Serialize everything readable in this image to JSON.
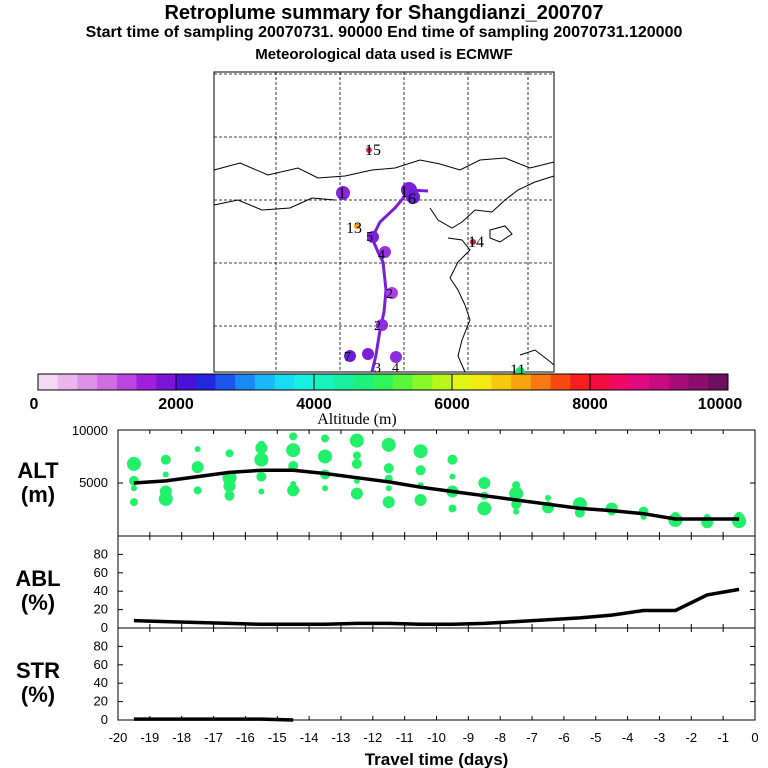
{
  "header": {
    "title": "Retroplume summary for Shangdianzi_200707",
    "sampling_line": "Start time of sampling 20070731. 90000     End time of sampling 20070731.120000",
    "met_line": "Meteorological data used is ECMWF"
  },
  "colorbar": {
    "label": "Altitude (m)",
    "ticks": [
      "0",
      "2000",
      "4000",
      "6000",
      "8000",
      "10000"
    ],
    "colors": [
      "#f4d8f4",
      "#e9b6ee",
      "#dd92e8",
      "#cf6de3",
      "#bb45de",
      "#a11edc",
      "#7b14d8",
      "#4a10d8",
      "#2426e0",
      "#1d56ee",
      "#1a88f6",
      "#19b8f8",
      "#18dcf4",
      "#18f0e0",
      "#17f2c0",
      "#18f0a0",
      "#1ef27d",
      "#30f55a",
      "#58f73c",
      "#89f828",
      "#b8f81c",
      "#dff616",
      "#f6e812",
      "#f7c810",
      "#f8a40f",
      "#f8790f",
      "#f84a12",
      "#f81d1e",
      "#f20c40",
      "#ee0a62",
      "#e20a80",
      "#c80c80",
      "#a80c78",
      "#8a0e6c",
      "#6c0f5e"
    ]
  },
  "map": {
    "points": [
      {
        "label": "15",
        "color": "#e22680"
      },
      {
        "label": "14",
        "color": "#e01a36"
      },
      {
        "label": "1",
        "color": "#8a24e0"
      },
      {
        "label": "13",
        "color": "#f39c12"
      },
      {
        "label": "1",
        "color": "#7a1fd8"
      },
      {
        "label": "6",
        "color": "#6a1fd8"
      },
      {
        "label": "5",
        "color": "#7a1fd8"
      },
      {
        "label": "4",
        "color": "#9a2fe0"
      },
      {
        "label": "2",
        "color": "#aa3ee0"
      },
      {
        "label": "2",
        "color": "#8a2ee0"
      },
      {
        "label": "7",
        "color": "#6a1fd8"
      },
      {
        "label": "3",
        "color": "#7a1fd8"
      },
      {
        "label": "4",
        "color": "#8a2ee0"
      },
      {
        "label": "11",
        "color": "#22e07a"
      }
    ]
  },
  "chart_data": [
    {
      "type": "scatter",
      "name": "ALT",
      "ylabel": "ALT (m)",
      "ylabel_line1": "ALT",
      "ylabel_line2": "(m)",
      "xlim": [
        -20,
        0
      ],
      "ylim": [
        0,
        10000
      ],
      "yticks": [
        "5000",
        "10000"
      ],
      "median_line": {
        "x": [
          -19.5,
          -18.5,
          -17.5,
          -16.5,
          -15.5,
          -14.5,
          -13.5,
          -12.5,
          -11.5,
          -10.5,
          -9.5,
          -8.5,
          -7.5,
          -6.5,
          -5.5,
          -4.5,
          -3.5,
          -2.5,
          -1.5,
          -0.5
        ],
        "y": [
          5000,
          5200,
          5600,
          6000,
          6200,
          6200,
          5900,
          5500,
          5100,
          4600,
          4200,
          3800,
          3400,
          3000,
          2600,
          2400,
          2100,
          1600,
          1600,
          1600
        ]
      },
      "scatter_color": "#22f06a",
      "scatter_points": [
        [
          -19.5,
          4500
        ],
        [
          -19.5,
          5200
        ],
        [
          -19.5,
          6800
        ],
        [
          -19.5,
          3200
        ],
        [
          -18.5,
          4200
        ],
        [
          -18.5,
          5800
        ],
        [
          -18.5,
          7200
        ],
        [
          -18.5,
          3500
        ],
        [
          -17.5,
          4300
        ],
        [
          -17.5,
          6500
        ],
        [
          -17.5,
          8200
        ],
        [
          -16.5,
          3800
        ],
        [
          -16.5,
          5500
        ],
        [
          -16.5,
          7800
        ],
        [
          -16.5,
          4700
        ],
        [
          -15.5,
          4200
        ],
        [
          -15.5,
          5600
        ],
        [
          -15.5,
          7200
        ],
        [
          -15.5,
          8600
        ],
        [
          -15.5,
          8300
        ],
        [
          -14.5,
          4900
        ],
        [
          -14.5,
          6600
        ],
        [
          -14.5,
          8100
        ],
        [
          -14.5,
          9400
        ],
        [
          -14.5,
          4300
        ],
        [
          -13.5,
          4500
        ],
        [
          -13.5,
          5800
        ],
        [
          -13.5,
          7500
        ],
        [
          -13.5,
          9200
        ],
        [
          -12.5,
          4000
        ],
        [
          -12.5,
          5200
        ],
        [
          -12.5,
          6800
        ],
        [
          -12.5,
          9000
        ],
        [
          -12.5,
          7600
        ],
        [
          -11.5,
          3200
        ],
        [
          -11.5,
          4500
        ],
        [
          -11.5,
          6400
        ],
        [
          -11.5,
          8600
        ],
        [
          -11.5,
          5400
        ],
        [
          -10.5,
          3400
        ],
        [
          -10.5,
          4800
        ],
        [
          -10.5,
          6200
        ],
        [
          -10.5,
          8000
        ],
        [
          -9.5,
          2600
        ],
        [
          -9.5,
          4200
        ],
        [
          -9.5,
          5600
        ],
        [
          -9.5,
          7200
        ],
        [
          -8.5,
          2600
        ],
        [
          -8.5,
          3800
        ],
        [
          -8.5,
          5000
        ],
        [
          -7.5,
          2300
        ],
        [
          -7.5,
          3000
        ],
        [
          -7.5,
          4000
        ],
        [
          -7.5,
          4800
        ],
        [
          -6.5,
          2700
        ],
        [
          -6.5,
          3600
        ],
        [
          -5.5,
          2200
        ],
        [
          -5.5,
          3000
        ],
        [
          -4.5,
          2300
        ],
        [
          -4.5,
          2600
        ],
        [
          -3.5,
          1800
        ],
        [
          -3.5,
          2300
        ],
        [
          -2.5,
          1500
        ],
        [
          -2.5,
          1900
        ],
        [
          -1.5,
          1300
        ],
        [
          -1.5,
          1800
        ],
        [
          -1.5,
          1500
        ],
        [
          -0.5,
          1400
        ],
        [
          -0.5,
          1900
        ],
        [
          -0.5,
          1600
        ]
      ]
    },
    {
      "type": "line",
      "name": "ABL",
      "ylabel": "ABL (%)",
      "ylabel_line1": "ABL",
      "ylabel_line2": "(%)",
      "xlim": [
        -20,
        0
      ],
      "ylim": [
        0,
        100
      ],
      "yticks": [
        "0",
        "20",
        "40",
        "60",
        "80"
      ],
      "x": [
        -19.5,
        -18.5,
        -17.5,
        -16.5,
        -15.5,
        -14.5,
        -13.5,
        -12.5,
        -11.5,
        -10.5,
        -9.5,
        -8.5,
        -7.5,
        -6.5,
        -5.5,
        -4.5,
        -3.5,
        -2.5,
        -1.5,
        -0.5
      ],
      "y": [
        8,
        7,
        6,
        5,
        4,
        4,
        4,
        5,
        5,
        4,
        4,
        5,
        7,
        9,
        11,
        14,
        19,
        19,
        36,
        42
      ]
    },
    {
      "type": "line",
      "name": "STR",
      "ylabel": "STR (%)",
      "ylabel_line1": "STR",
      "ylabel_line2": "(%)",
      "xlim": [
        -20,
        0
      ],
      "ylim": [
        0,
        100
      ],
      "yticks": [
        "0",
        "20",
        "40",
        "60",
        "80"
      ],
      "x": [
        -19.5,
        -18.5,
        -17.5,
        -16.5,
        -15.5,
        -14.5
      ],
      "y": [
        1,
        1,
        1,
        1,
        1,
        0
      ],
      "xlabel": "Travel time (days)",
      "xticks": [
        "-20",
        "-19",
        "-18",
        "-17",
        "-16",
        "-15",
        "-14",
        "-13",
        "-12",
        "-11",
        "-10",
        "-9",
        "-8",
        "-7",
        "-6",
        "-5",
        "-4",
        "-3",
        "-2",
        "-1",
        "0"
      ]
    }
  ]
}
